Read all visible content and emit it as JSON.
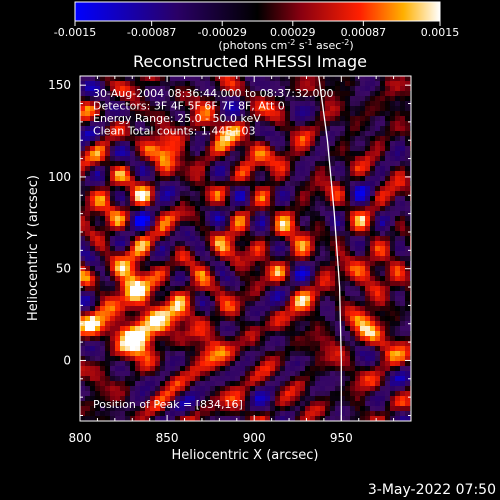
{
  "chart_data": {
    "type": "heatmap",
    "title": "Reconstructed RHESSI Image",
    "xlabel": "Heliocentric X (arcsec)",
    "ylabel": "Heliocentric Y (arcsec)",
    "xlim": [
      800,
      990
    ],
    "ylim": [
      -33,
      155
    ],
    "xticks": [
      "800",
      "850",
      "900",
      "950"
    ],
    "xtick_values": [
      800,
      850,
      900,
      950
    ],
    "yticks": [
      "0",
      "50",
      "100",
      "150"
    ],
    "ytick_values": [
      0,
      50,
      100,
      150
    ],
    "colorbar": {
      "min": -0.0015,
      "max": 0.0015,
      "ticks": [
        "-0.0015",
        "-0.00087",
        "-0.00029",
        "0.00029",
        "0.00087",
        "0.0015"
      ],
      "tick_values": [
        -0.0015,
        -0.00087,
        -0.00029,
        0.00029,
        0.00087,
        0.0015
      ],
      "unit_text": "(photons cm",
      "unit_exp1": "-2",
      "unit_mid": " s",
      "unit_exp2": "-1",
      "unit_mid2": " asec",
      "unit_exp3": "-2",
      "unit_end": ")"
    },
    "annotations": [
      "30-Aug-2004 08:36:44.000 to 08:37:32.000",
      "Detectors: 3F 4F 5F 6F 7F 8F, Att 0",
      "Energy Range: 25.0 - 50.0 keV",
      "Clean     Total counts: 1.44E+03"
    ],
    "peak_label": "Position of Peak = [834,16]",
    "peak": [
      834,
      16
    ],
    "limb": [
      [
        937,
        155
      ],
      [
        942,
        120
      ],
      [
        946,
        80
      ],
      [
        949,
        40
      ],
      [
        950,
        0
      ],
      [
        950,
        -33
      ]
    ],
    "hot_spots": [
      [
        834,
        16,
        1.0,
        9
      ],
      [
        830,
        45,
        0.75,
        9
      ],
      [
        848,
        115,
        0.55,
        8
      ],
      [
        815,
        88,
        0.45,
        8
      ],
      [
        878,
        125,
        0.4,
        8
      ],
      [
        903,
        112,
        0.45,
        8
      ],
      [
        920,
        68,
        0.35,
        8
      ],
      [
        858,
        28,
        0.5,
        9
      ],
      [
        878,
        5,
        0.45,
        8
      ],
      [
        965,
        48,
        0.4,
        9
      ],
      [
        968,
        15,
        0.45,
        9
      ],
      [
        808,
        18,
        0.4,
        8
      ],
      [
        930,
        28,
        0.3,
        8
      ],
      [
        890,
        58,
        0.35,
        9
      ]
    ]
  },
  "footer": {
    "date": "3-May-2022 07:50"
  }
}
